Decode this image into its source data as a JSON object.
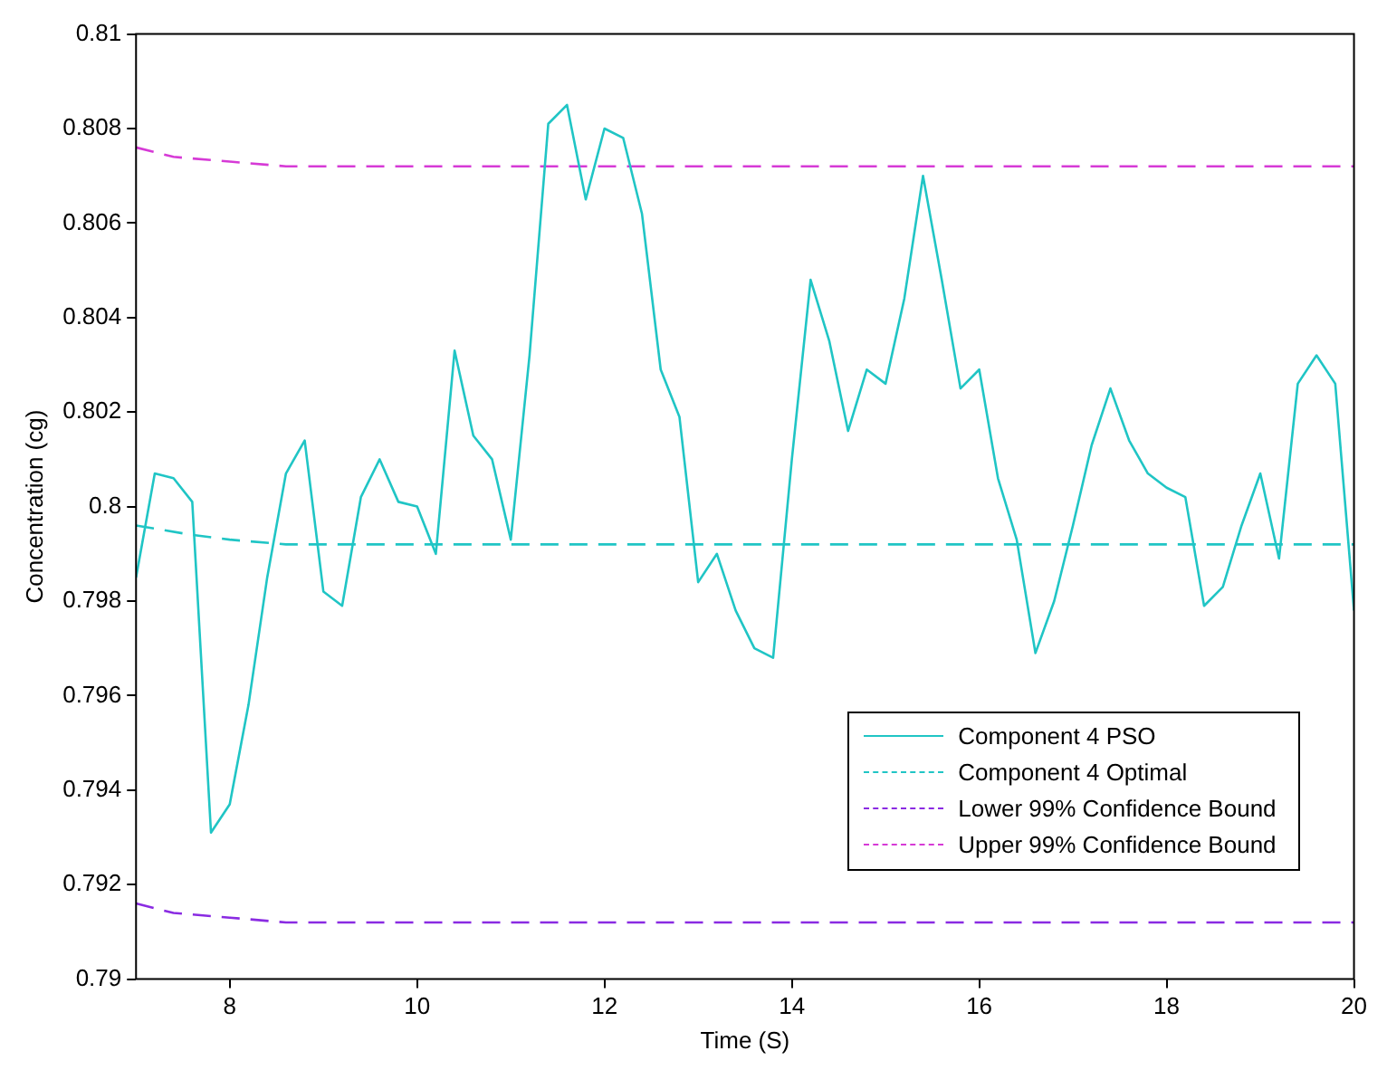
{
  "chart_data": {
    "type": "line",
    "xlabel": "Time (S)",
    "ylabel": "Concentration (cg)",
    "xlim": [
      7,
      20
    ],
    "xticks": [
      8,
      10,
      12,
      14,
      16,
      18,
      20
    ],
    "ylim": [
      0.79,
      0.81
    ],
    "yticks": [
      0.79,
      0.792,
      0.794,
      0.796,
      0.798,
      0.8,
      0.802,
      0.804,
      0.806,
      0.808,
      0.81
    ],
    "grid": false,
    "legend": "bottom right",
    "marker": "none",
    "series": [
      {
        "name": "Component 4 PSO",
        "color": "#20c5c5",
        "line_style": "solid",
        "x": [
          7.0,
          7.2,
          7.4,
          7.6,
          7.8,
          8.0,
          8.2,
          8.4,
          8.6,
          8.8,
          9.0,
          9.2,
          9.4,
          9.6,
          9.8,
          10.0,
          10.2,
          10.4,
          10.6,
          10.8,
          11.0,
          11.2,
          11.4,
          11.6,
          11.8,
          12.0,
          12.2,
          12.4,
          12.6,
          12.8,
          13.0,
          13.2,
          13.4,
          13.6,
          13.8,
          14.0,
          14.2,
          14.4,
          14.6,
          14.8,
          15.0,
          15.2,
          15.4,
          15.6,
          15.8,
          16.0,
          16.2,
          16.4,
          16.6,
          16.8,
          17.0,
          17.2,
          17.4,
          17.6,
          17.8,
          18.0,
          18.2,
          18.4,
          18.6,
          18.8,
          19.0,
          19.2,
          19.4,
          19.6,
          19.8,
          20.0
        ],
        "values": [
          0.7985,
          0.8007,
          0.8006,
          0.8001,
          0.7931,
          0.7937,
          0.7958,
          0.7985,
          0.8007,
          0.8014,
          0.7982,
          0.7979,
          0.8002,
          0.801,
          0.8001,
          0.8,
          0.799,
          0.8033,
          0.8015,
          0.801,
          0.7993,
          0.8032,
          0.8081,
          0.8085,
          0.8065,
          0.808,
          0.8078,
          0.8062,
          0.8029,
          0.8019,
          0.7984,
          0.799,
          0.7978,
          0.797,
          0.7968,
          0.801,
          0.8048,
          0.8035,
          0.8016,
          0.8029,
          0.8026,
          0.8044,
          0.807,
          0.8048,
          0.8025,
          0.8029,
          0.8006,
          0.7993,
          0.7969,
          0.798,
          0.7996,
          0.8013,
          0.8025,
          0.8014,
          0.8007,
          0.8004,
          0.8002,
          0.7979,
          0.7983,
          0.7996,
          0.8007,
          0.7989,
          0.8026,
          0.8032,
          0.8026,
          0.7978
        ]
      },
      {
        "name": "Component 4 Optimal",
        "color": "#20c5c5",
        "line_style": "dashed",
        "x": [
          7,
          7.6,
          8,
          8.6,
          20
        ],
        "values": [
          0.7996,
          0.7994,
          0.7993,
          0.7992,
          0.7992
        ]
      },
      {
        "name": "Lower 99% Confidence Bound",
        "color": "#8a2be2",
        "line_style": "dashed",
        "x": [
          7,
          7.4,
          8,
          8.6,
          20
        ],
        "values": [
          0.7916,
          0.7914,
          0.7913,
          0.7912,
          0.7912
        ]
      },
      {
        "name": "Upper 99% Confidence Bound",
        "color": "#d63ad6",
        "line_style": "dashed",
        "x": [
          7,
          7.4,
          8,
          8.6,
          20
        ],
        "values": [
          0.8076,
          0.8074,
          0.8073,
          0.8072,
          0.8072
        ]
      }
    ]
  }
}
